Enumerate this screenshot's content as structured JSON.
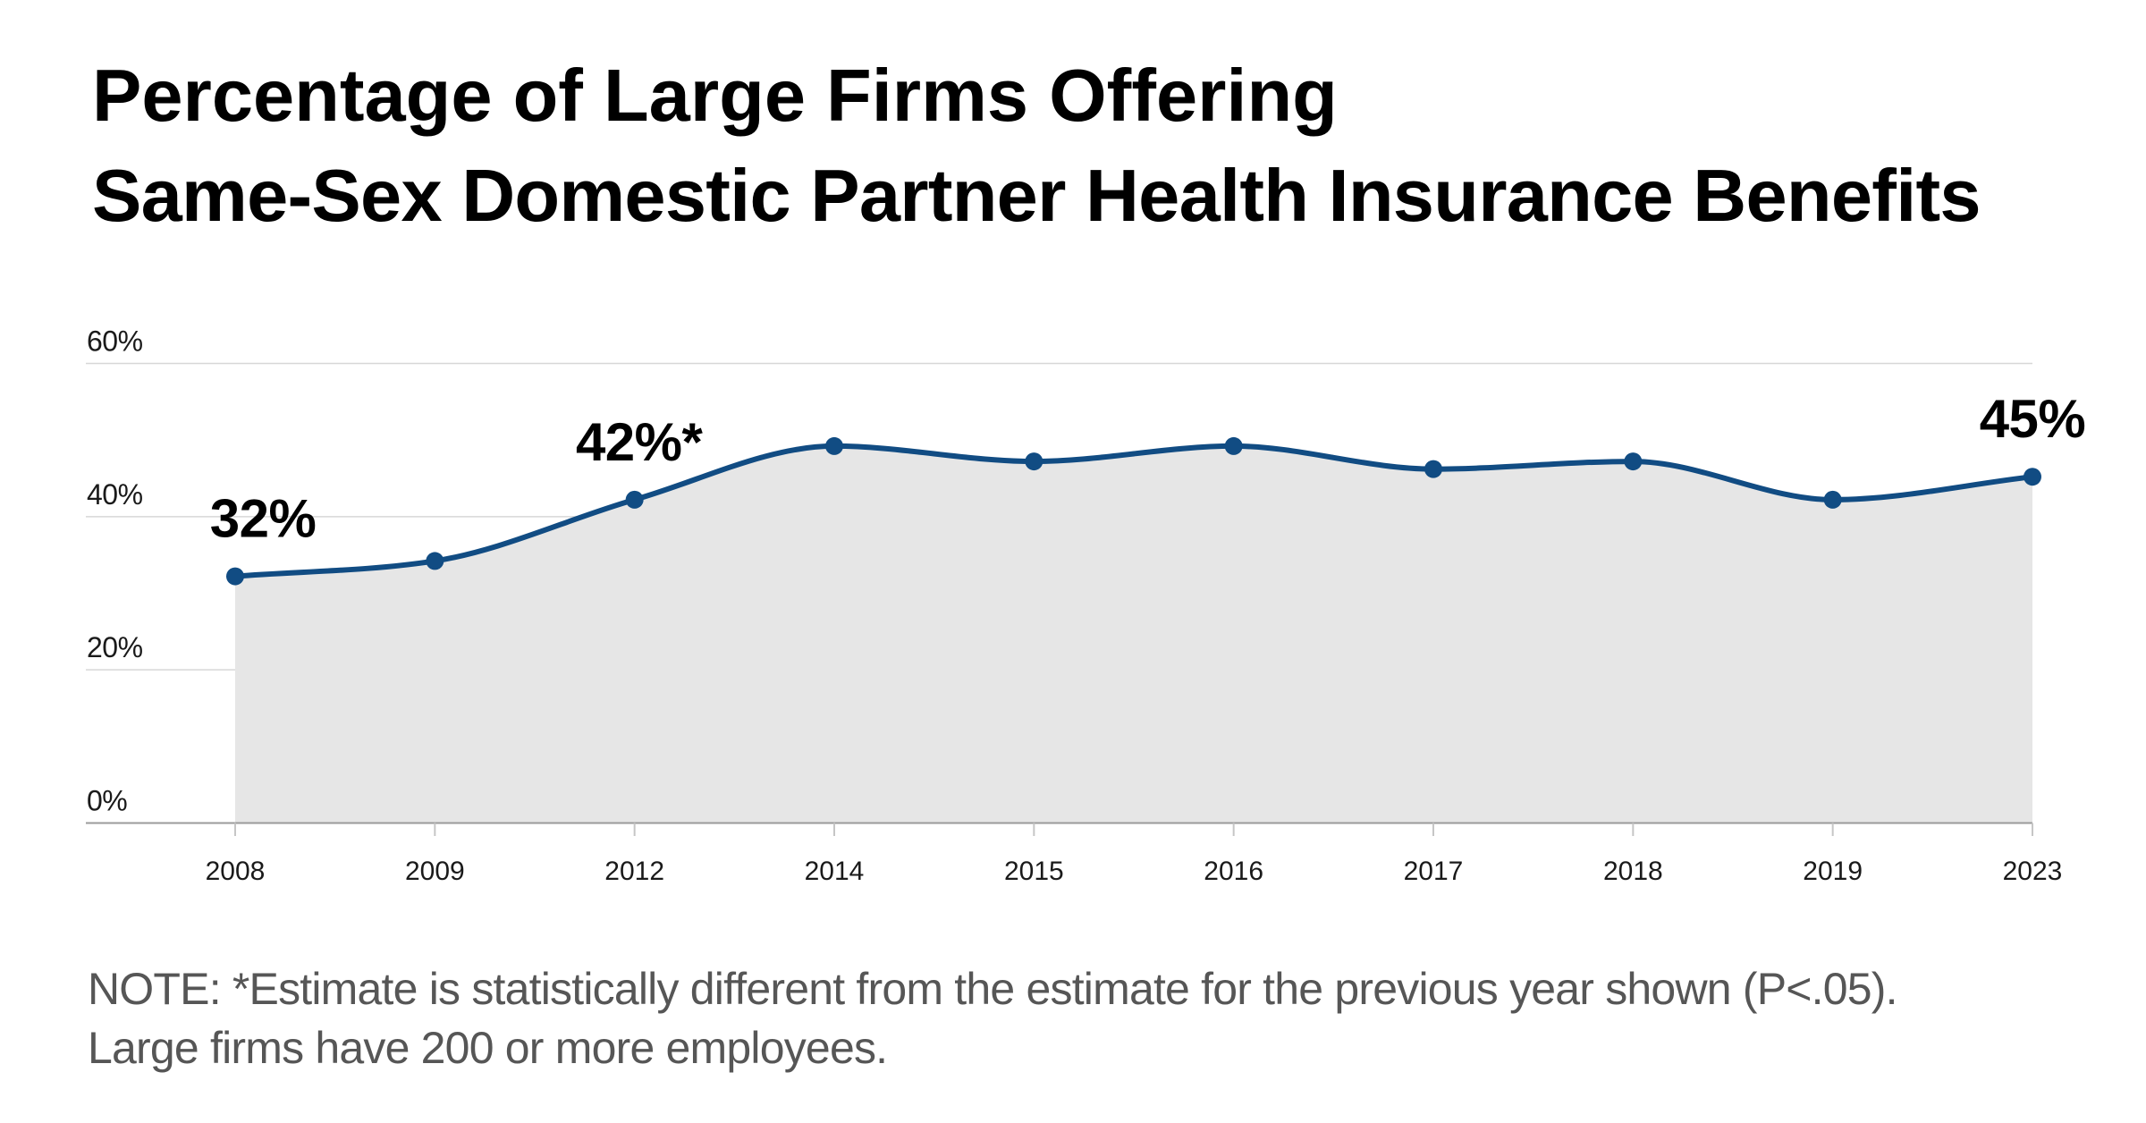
{
  "title": {
    "line1": "Percentage of Large Firms Offering",
    "line2": "Same-Sex Domestic Partner Health Insurance Benefits"
  },
  "note": {
    "line1": "NOTE: *Estimate is statistically different from the estimate for the previous year shown (P<.05).",
    "line2": "Large firms have 200 or more employees."
  },
  "chart_data": {
    "type": "area",
    "title": "Percentage of Large Firms Offering Same-Sex Domestic Partner Health Insurance Benefits",
    "categories": [
      "2008",
      "2009",
      "2012",
      "2014",
      "2015",
      "2016",
      "2017",
      "2018",
      "2019",
      "2023"
    ],
    "values": [
      32,
      34,
      42,
      49,
      47,
      49,
      46,
      47,
      42,
      45
    ],
    "xlabel": "",
    "ylabel": "",
    "ylim": [
      0,
      60
    ],
    "yticks": [
      0,
      20,
      40,
      60
    ],
    "ytick_labels": [
      "0%",
      "20%",
      "40%",
      "60%"
    ],
    "grid": true,
    "legend": false,
    "line_smoothing": "monotone",
    "point_markers": true,
    "annotations": [
      {
        "category": "2008",
        "text": "32%"
      },
      {
        "category": "2012",
        "text": "42%*"
      },
      {
        "category": "2023",
        "text": "45%"
      }
    ],
    "colors": {
      "line": "#114C83",
      "marker": "#114C83",
      "area_fill": "#E6E6E6",
      "gridline": "#D7D7D7",
      "axis_line": "#9B9B9B",
      "tick_mark": "#C6C6C6",
      "tick_label": "#1a1a1a",
      "value_label": "#000000",
      "title": "#000000",
      "note": "#565656",
      "background": "#FFFFFF"
    }
  }
}
